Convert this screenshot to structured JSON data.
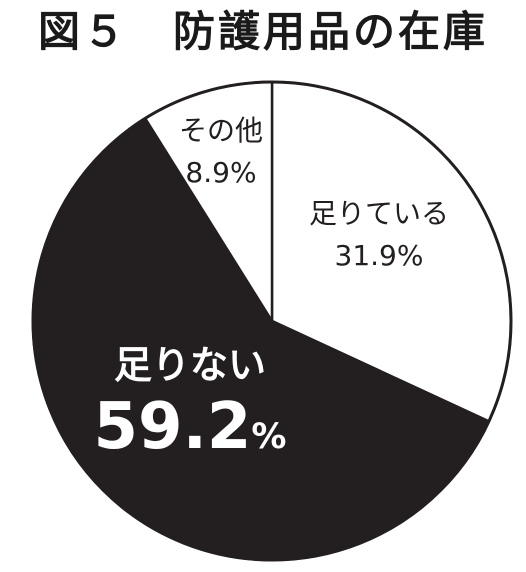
{
  "chart_data": {
    "type": "pie",
    "title": "図５　防護用品の在庫",
    "start_angle_deg": 0,
    "direction": "clockwise",
    "slices": [
      {
        "label": "足りている",
        "value": 31.9,
        "value_text": "31.9%",
        "color": "#ffffff",
        "text_color": "#231f20",
        "emphasis": false
      },
      {
        "label": "足りない",
        "value": 59.2,
        "value_text": "59.2",
        "value_unit": "%",
        "color": "#231f20",
        "text_color": "#ffffff",
        "emphasis": true
      },
      {
        "label": "その他",
        "value": 8.9,
        "value_text": "8.9%",
        "color": "#ffffff",
        "text_color": "#231f20",
        "emphasis": false
      }
    ]
  }
}
